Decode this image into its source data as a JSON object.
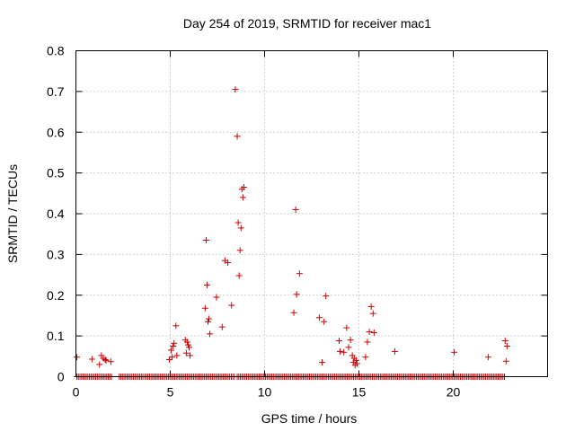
{
  "chart_data": {
    "type": "scatter",
    "title": "Day 254 of 2019, SRMTID for receiver mac1",
    "xlabel": "GPS time / hours",
    "ylabel": "SRMTID / TECUs",
    "xlim": [
      0,
      25
    ],
    "ylim": [
      0,
      0.8
    ],
    "x_ticks": [
      0,
      5,
      10,
      15,
      20
    ],
    "y_ticks": [
      0,
      0.1,
      0.2,
      0.3,
      0.4,
      0.5,
      0.6,
      0.7,
      0.8
    ],
    "x_tick_labels": [
      "0",
      "5",
      "10",
      "15",
      "20"
    ],
    "y_tick_labels": [
      "0",
      "0.1",
      "0.2",
      "0.3",
      "0.4",
      "0.5",
      "0.6",
      "0.7",
      "0.8"
    ],
    "grid": true,
    "marker": "+",
    "color": "#cc0000",
    "zero_band": [
      [
        0.05,
        1.95
      ],
      [
        2.3,
        3.6
      ],
      [
        3.65,
        8.45
      ],
      [
        8.55,
        22.75
      ]
    ],
    "series": [
      {
        "values_x": [
          0.05,
          0.85,
          1.25,
          1.35,
          1.45,
          1.55,
          1.6,
          1.85,
          4.95,
          5.05,
          5.1,
          5.15,
          5.2,
          5.3,
          5.35,
          5.8,
          5.85,
          5.9,
          5.95,
          6.0,
          6.05,
          6.85,
          6.9,
          6.95,
          7.0,
          7.05,
          7.1,
          7.45,
          7.75,
          7.9,
          8.05,
          8.25,
          8.45,
          8.55,
          8.6,
          8.65,
          8.7,
          8.75,
          8.8,
          8.85,
          8.9,
          11.55,
          11.65,
          11.7,
          11.85,
          12.9,
          13.05,
          13.15,
          13.25,
          13.95,
          14.0,
          14.2,
          14.35,
          14.45,
          14.55,
          14.65,
          14.7,
          14.75,
          14.8,
          14.85,
          14.9,
          15.35,
          15.45,
          15.55,
          15.65,
          15.75,
          15.8,
          16.9,
          20.05,
          21.85,
          22.75,
          22.8,
          22.85
        ],
        "values_y": [
          0.048,
          0.043,
          0.03,
          0.052,
          0.045,
          0.042,
          0.04,
          0.037,
          0.042,
          0.065,
          0.048,
          0.075,
          0.082,
          0.125,
          0.052,
          0.09,
          0.058,
          0.085,
          0.078,
          0.072,
          0.052,
          0.168,
          0.335,
          0.225,
          0.135,
          0.142,
          0.105,
          0.195,
          0.122,
          0.285,
          0.28,
          0.175,
          0.705,
          0.59,
          0.378,
          0.248,
          0.31,
          0.365,
          0.46,
          0.44,
          0.465,
          0.157,
          0.41,
          0.202,
          0.253,
          0.145,
          0.035,
          0.135,
          0.198,
          0.088,
          0.062,
          0.06,
          0.12,
          0.072,
          0.09,
          0.052,
          0.035,
          0.045,
          0.028,
          0.04,
          0.032,
          0.048,
          0.085,
          0.11,
          0.172,
          0.155,
          0.108,
          0.062,
          0.06,
          0.048,
          0.088,
          0.038,
          0.075
        ]
      }
    ]
  }
}
